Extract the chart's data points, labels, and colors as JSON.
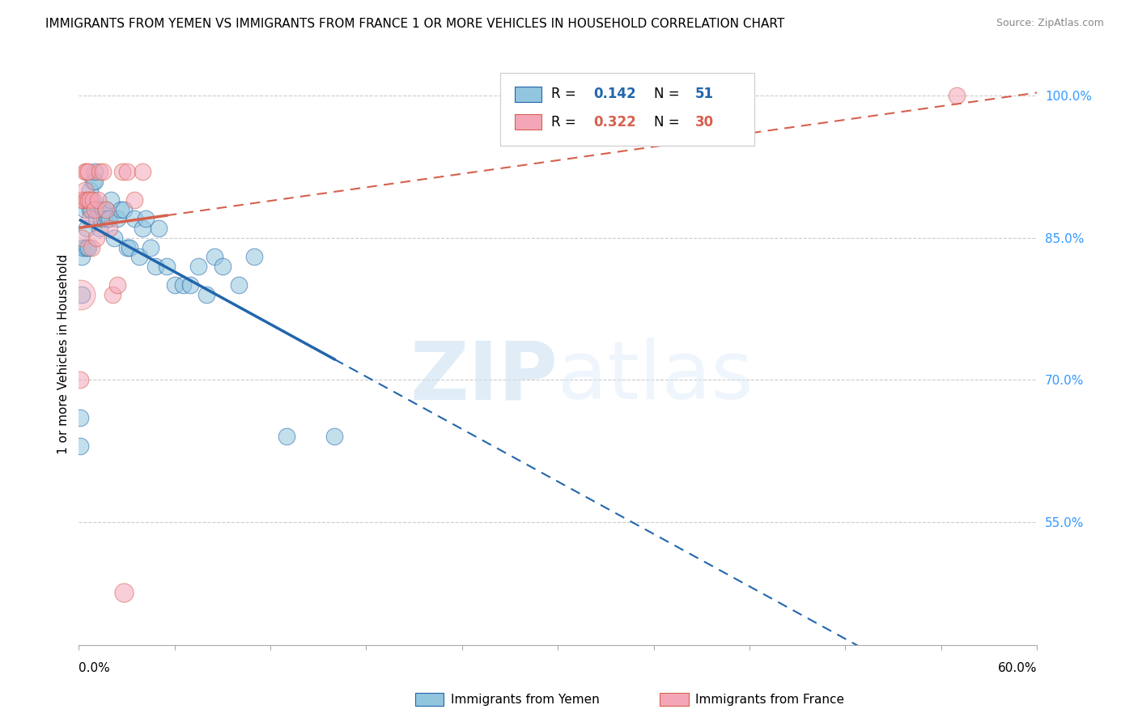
{
  "title": "IMMIGRANTS FROM YEMEN VS IMMIGRANTS FROM FRANCE 1 OR MORE VEHICLES IN HOUSEHOLD CORRELATION CHART",
  "source": "Source: ZipAtlas.com",
  "ylabel": "1 or more Vehicles in Household",
  "xlim": [
    0.0,
    0.6
  ],
  "ylim": [
    0.42,
    1.035
  ],
  "ytick_vals": [
    0.55,
    0.7,
    0.85,
    1.0
  ],
  "ytick_labels": [
    "55.0%",
    "70.0%",
    "85.0%",
    "100.0%"
  ],
  "color_yemen": "#92c5de",
  "color_france": "#f4a6b8",
  "color_trend_yemen": "#2166ac",
  "color_trend_france": "#d6604d",
  "watermark_zip": "ZIP",
  "watermark_atlas": "atlas",
  "legend_r_yemen": "0.142",
  "legend_n_yemen": "51",
  "legend_r_france": "0.322",
  "legend_n_france": "30",
  "yemen_x": [
    0.001,
    0.001,
    0.002,
    0.002,
    0.003,
    0.004,
    0.005,
    0.005,
    0.006,
    0.007,
    0.007,
    0.008,
    0.008,
    0.009,
    0.01,
    0.01,
    0.011,
    0.012,
    0.013,
    0.014,
    0.015,
    0.016,
    0.017,
    0.018,
    0.019,
    0.02,
    0.022,
    0.024,
    0.026,
    0.028,
    0.03,
    0.032,
    0.035,
    0.038,
    0.04,
    0.042,
    0.045,
    0.048,
    0.05,
    0.055,
    0.06,
    0.065,
    0.07,
    0.075,
    0.08,
    0.085,
    0.09,
    0.1,
    0.11,
    0.13,
    0.16
  ],
  "yemen_y": [
    0.63,
    0.66,
    0.79,
    0.83,
    0.84,
    0.88,
    0.84,
    0.86,
    0.84,
    0.88,
    0.9,
    0.88,
    0.89,
    0.91,
    0.91,
    0.92,
    0.87,
    0.88,
    0.86,
    0.87,
    0.88,
    0.87,
    0.88,
    0.87,
    0.87,
    0.89,
    0.85,
    0.87,
    0.88,
    0.88,
    0.84,
    0.84,
    0.87,
    0.83,
    0.86,
    0.87,
    0.84,
    0.82,
    0.86,
    0.82,
    0.8,
    0.8,
    0.8,
    0.82,
    0.79,
    0.83,
    0.82,
    0.8,
    0.83,
    0.64,
    0.64
  ],
  "france_x": [
    0.001,
    0.002,
    0.002,
    0.003,
    0.004,
    0.004,
    0.005,
    0.005,
    0.006,
    0.006,
    0.007,
    0.007,
    0.008,
    0.009,
    0.01,
    0.011,
    0.012,
    0.013,
    0.015,
    0.017,
    0.019,
    0.021,
    0.024,
    0.027,
    0.03,
    0.035,
    0.04,
    0.55
  ],
  "france_y": [
    0.7,
    0.85,
    0.89,
    0.89,
    0.9,
    0.92,
    0.89,
    0.92,
    0.89,
    0.92,
    0.87,
    0.89,
    0.84,
    0.89,
    0.88,
    0.85,
    0.89,
    0.92,
    0.92,
    0.88,
    0.86,
    0.79,
    0.8,
    0.92,
    0.92,
    0.89,
    0.92,
    1.0
  ],
  "france_outlier_x": [
    0.028
  ],
  "france_outlier_y": [
    0.475
  ],
  "france_large_x": [
    0.001
  ],
  "france_large_y": [
    0.79
  ],
  "bubble_size_base": 200
}
